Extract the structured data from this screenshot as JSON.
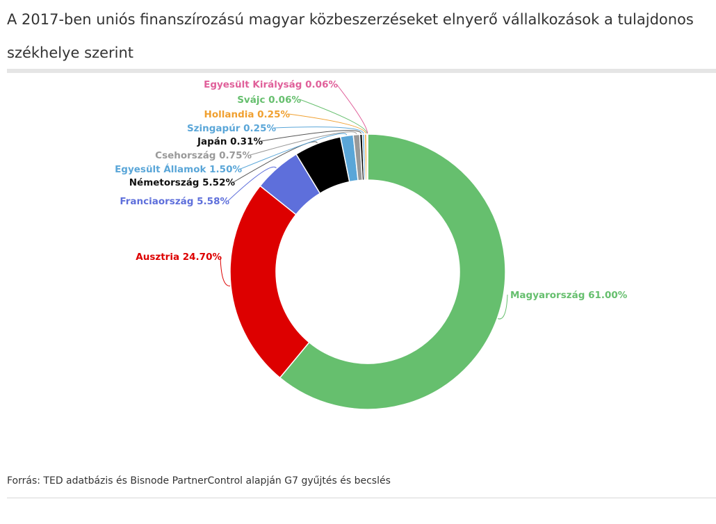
{
  "title": "A 2017-ben uniós finanszírozású magyar közbeszerzéseket elnyerő vállalkozások a tulajdonos székhelye szerint",
  "source": "Forrás: TED adatbázis és Bisnode PartnerControl alapján G7 gyűjtés és becslés",
  "chart_data": {
    "type": "pie",
    "subtype": "donut",
    "series": [
      {
        "label": "Magyarország 61.00%",
        "name": "Magyarország",
        "value": 61.0,
        "color": "#66bf6e"
      },
      {
        "label": "Ausztria 24.70%",
        "name": "Ausztria",
        "value": 24.7,
        "color": "#dd0000"
      },
      {
        "label": "Franciaország 5.58%",
        "name": "Franciaország",
        "value": 5.58,
        "color": "#5e6fdb"
      },
      {
        "label": "Németország 5.52%",
        "name": "Németország",
        "value": 5.52,
        "color": "#000000"
      },
      {
        "label": "Egyesült Államok 1.50%",
        "name": "Egyesült Államok",
        "value": 1.5,
        "color": "#5aa6d8"
      },
      {
        "label": "Csehország 0.75%",
        "name": "Csehország",
        "value": 0.75,
        "color": "#999999"
      },
      {
        "label": "Japán 0.31%",
        "name": "Japán",
        "value": 0.31,
        "color": "#000000"
      },
      {
        "label": "Szingapúr 0.25%",
        "name": "Szingapúr",
        "value": 0.25,
        "color": "#5aa6d8"
      },
      {
        "label": "Hollandia 0.25%",
        "name": "Hollandia",
        "value": 0.25,
        "color": "#f0a030"
      },
      {
        "label": "Svájc 0.06%",
        "name": "Svájc",
        "value": 0.06,
        "color": "#66bf6e"
      },
      {
        "label": "Egyesült Királyság 0.06%",
        "name": "Egyesült Királyság",
        "value": 0.06,
        "color": "#e0609a"
      }
    ]
  }
}
